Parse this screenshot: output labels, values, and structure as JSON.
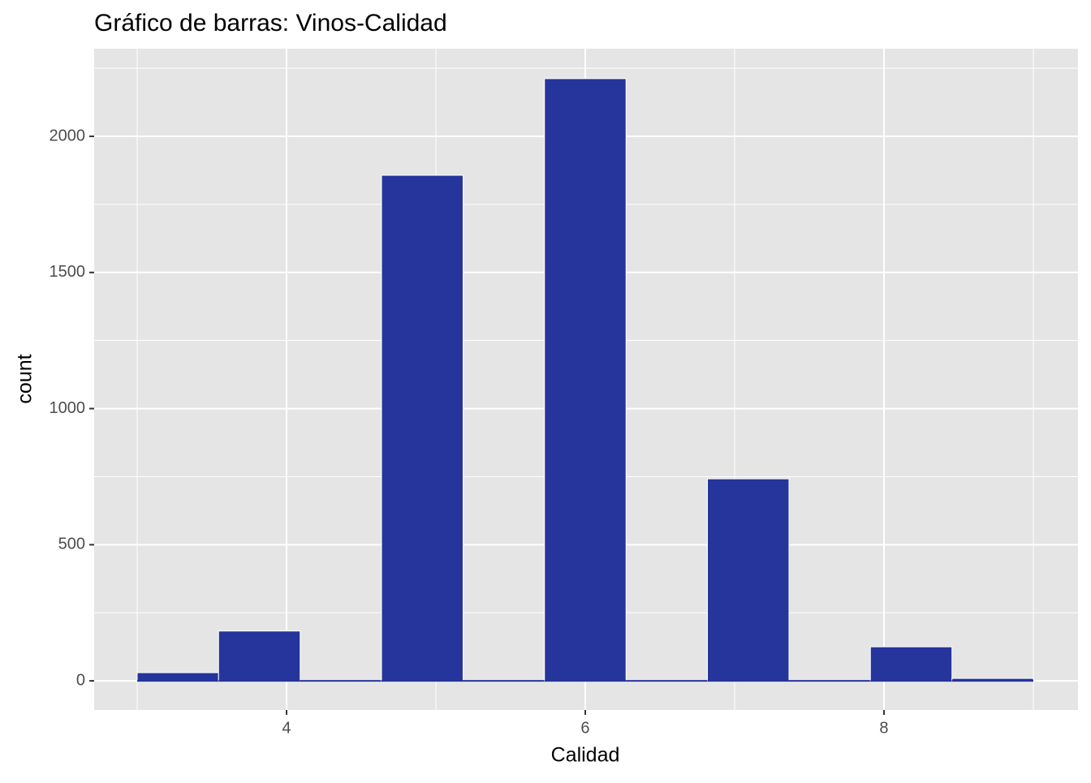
{
  "chart_data": {
    "type": "histogram",
    "title": "Gráfico de barras: Vinos-Calidad",
    "x_label": "Calidad",
    "y_label": "count",
    "bins": [
      3,
      3.545,
      4.091,
      4.636,
      5.182,
      5.727,
      6.273,
      6.818,
      7.364,
      7.909,
      8.455,
      9
    ],
    "values": [
      30,
      183,
      0,
      1857,
      0,
      2212,
      0,
      742,
      0,
      125,
      9
    ],
    "color": "#25359b",
    "xlim": [
      2.712,
      9.299
    ],
    "xticks": [
      4,
      6,
      8
    ],
    "ylim": [
      -107,
      2322
    ],
    "yticks": [
      0,
      500,
      1000,
      1500,
      2000
    ],
    "grid": true
  }
}
